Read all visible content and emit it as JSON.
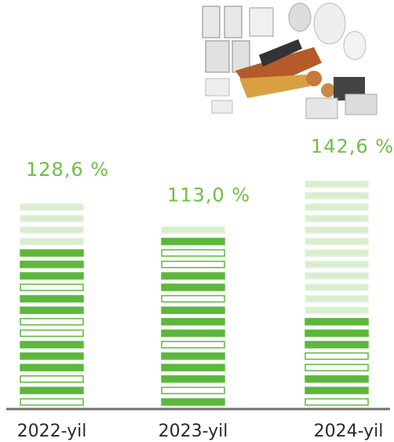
{
  "chart_data": {
    "type": "bar",
    "categories": [
      "2022-yil",
      "2023-yil",
      "2024-yil"
    ],
    "values": [
      128.6,
      113.0,
      142.6
    ],
    "value_labels": [
      "128,6 %",
      "113,0 %",
      "142,6 %"
    ],
    "color": "#5cb83c"
  }
}
